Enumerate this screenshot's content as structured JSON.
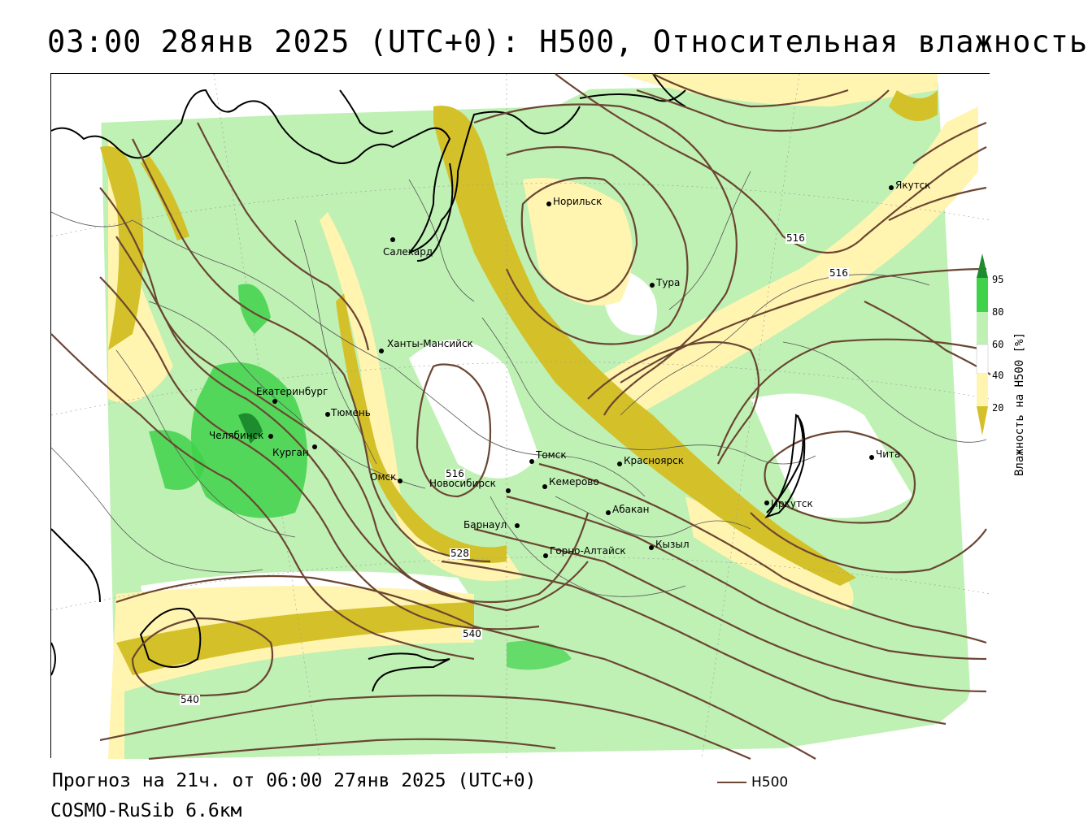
{
  "title": "03:00 28янв 2025 (UTC+0): H500, Относительная влажность",
  "forecast_line": "Прогноз на 21ч. от 06:00 27янв 2025 (UTC+0)",
  "model": "COSMO-RuSib 6.6км",
  "series_key": "H500",
  "legend": {
    "title": "Влажность на H500 [%]",
    "ticks": [
      "95",
      "80",
      "60",
      "40",
      "20"
    ],
    "colors": {
      "c95": "#1e8c2e",
      "c80": "#3fd24a",
      "c60": "#bff0b4",
      "c40": "#ffffff",
      "c20": "#fff4b0",
      "c0": "#d4c12a"
    }
  },
  "colors": {
    "isoline": "#6b4632",
    "coast": "#000000",
    "border": "#555555"
  },
  "cities": [
    {
      "name": "Якутск"
    },
    {
      "name": "Норильск"
    },
    {
      "name": "Салехард"
    },
    {
      "name": "Тура"
    },
    {
      "name": "Ханты-Мансийск"
    },
    {
      "name": "Екатеринбург"
    },
    {
      "name": "Тюмень"
    },
    {
      "name": "Челябинск"
    },
    {
      "name": "Курган"
    },
    {
      "name": "Омск"
    },
    {
      "name": "Томск"
    },
    {
      "name": "Красноярск"
    },
    {
      "name": "Новосибирск"
    },
    {
      "name": "Кемерово"
    },
    {
      "name": "Абакан"
    },
    {
      "name": "Барнаул"
    },
    {
      "name": "Горно-Алтайск"
    },
    {
      "name": "Кызыл"
    },
    {
      "name": "Иркутск"
    },
    {
      "name": "Чита"
    }
  ],
  "isoline_labels": [
    "516",
    "516",
    "516",
    "528",
    "540",
    "540"
  ]
}
